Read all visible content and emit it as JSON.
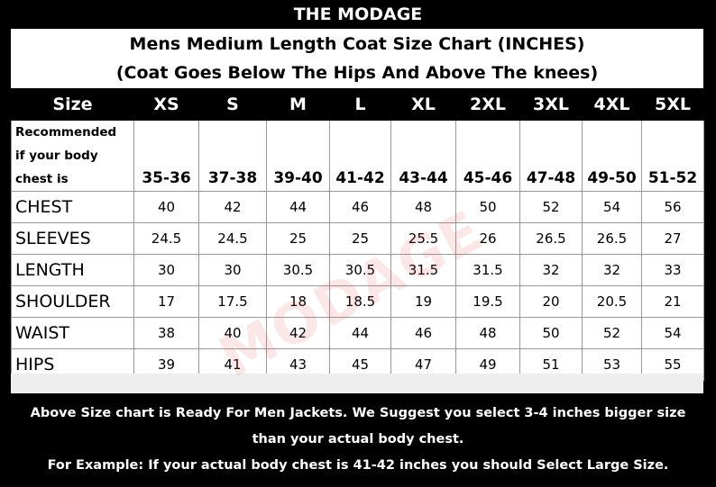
{
  "header": {
    "brand": "THE MODAGE",
    "title": "Mens Medium Length Coat Size Chart (INCHES)",
    "subtitle": "(Coat Goes Below The Hips And Above The knees)"
  },
  "table": {
    "columns": [
      "Size",
      "XS",
      "S",
      "M",
      "L",
      "XL",
      "2XL",
      "3XL",
      "4XL",
      "5XL"
    ],
    "recommended": {
      "label": [
        "Recommended",
        "if your body",
        "chest is"
      ],
      "values": [
        "35-36",
        "37-38",
        "39-40",
        "41-42",
        "43-44",
        "45-46",
        "47-48",
        "49-50",
        "51-52"
      ]
    },
    "rows": [
      [
        "CHEST",
        40,
        42,
        44,
        46,
        48,
        50,
        52,
        54,
        56
      ],
      [
        "SLEEVES",
        24.5,
        24.5,
        25,
        25,
        25.5,
        26,
        26.5,
        26.5,
        27
      ],
      [
        "LENGTH",
        30,
        30,
        30.5,
        30.5,
        31.5,
        31.5,
        32,
        32,
        33
      ],
      [
        "SHOULDER",
        17,
        17.5,
        18,
        18.5,
        19,
        19.5,
        20,
        20.5,
        21
      ],
      [
        "WAIST",
        38,
        40,
        42,
        44,
        46,
        48,
        50,
        52,
        54
      ],
      [
        "HIPS",
        39,
        41,
        43,
        45,
        47,
        49,
        51,
        53,
        55
      ]
    ]
  },
  "watermark": "MODAGE",
  "footer": {
    "lines": [
      "Above Size chart is Ready For Men Jackets. We Suggest you select 3-4 inches bigger size",
      "than your actual body chest.",
      "For Example: If your actual body chest is 41-42 inches you should Select Large Size."
    ]
  }
}
